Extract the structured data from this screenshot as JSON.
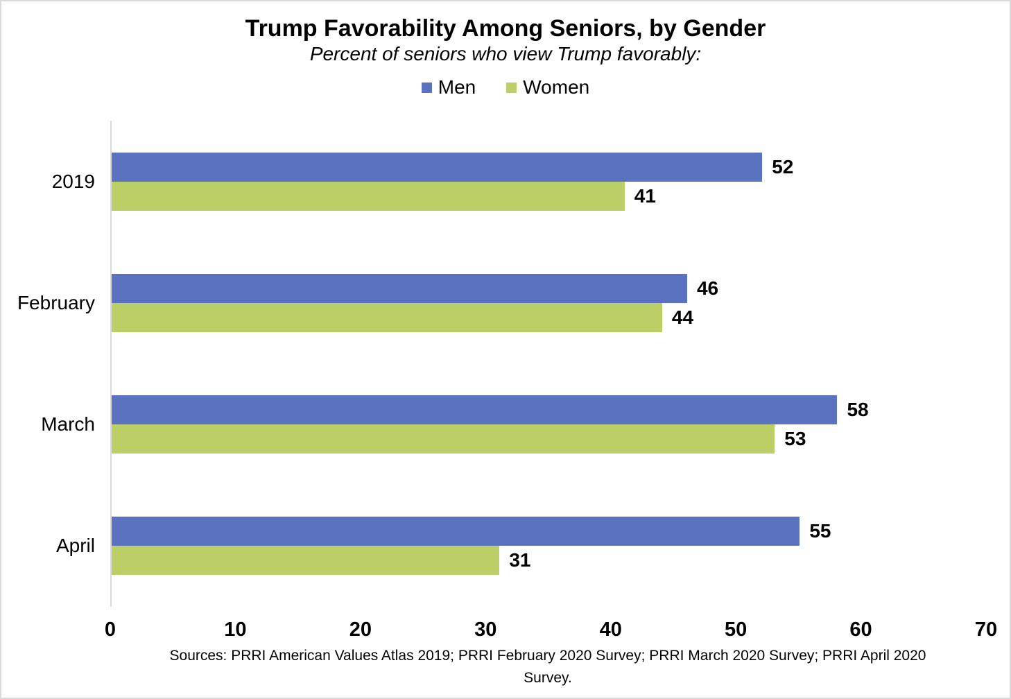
{
  "chart_data": {
    "type": "bar",
    "orientation": "horizontal",
    "title": "Trump Favorability Among Seniors, by Gender",
    "subtitle": "Percent of seniors who view Trump favorably:",
    "categories": [
      "2019",
      "February",
      "March",
      "April"
    ],
    "series": [
      {
        "name": "Men",
        "color": "#5A72BF",
        "values": [
          52,
          46,
          58,
          55
        ]
      },
      {
        "name": "Women",
        "color": "#BBCF66",
        "values": [
          41,
          44,
          53,
          31
        ]
      }
    ],
    "xlim": [
      0,
      70
    ],
    "x_ticks": [
      0,
      10,
      20,
      30,
      40,
      50,
      60,
      70
    ],
    "grid": false,
    "legend_position": "top",
    "axis_line_color": "#d9d9d9",
    "value_labels_shown": true,
    "source": "Sources: PRRI American Values Atlas 2019;  PRRI February 2020 Survey; PRRI March 2020 Survey; PRRI April 2020 Survey."
  }
}
